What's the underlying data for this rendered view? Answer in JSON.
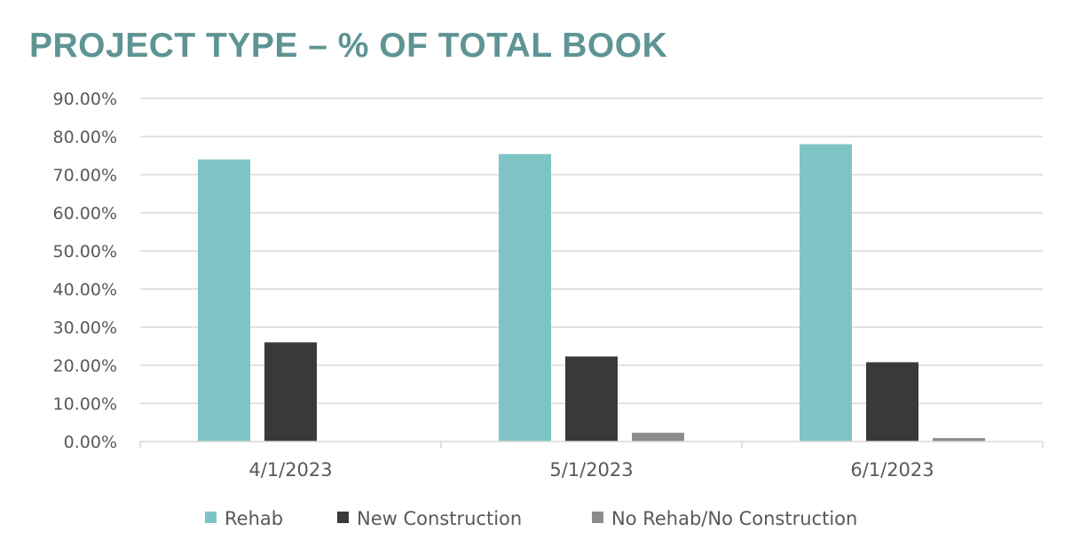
{
  "chart_data": {
    "type": "bar",
    "title": "PROJECT TYPE – % OF TOTAL BOOK",
    "xlabel": "",
    "ylabel": "",
    "categories": [
      "4/1/2023",
      "5/1/2023",
      "6/1/2023"
    ],
    "ylim": [
      0,
      90
    ],
    "yticks": [
      "0.00%",
      "10.00%",
      "20.00%",
      "30.00%",
      "40.00%",
      "50.00%",
      "60.00%",
      "70.00%",
      "80.00%",
      "90.00%"
    ],
    "grid": true,
    "legend_position": "bottom",
    "series": [
      {
        "name": "Rehab",
        "color": "#7fc4c4",
        "values": [
          74.0,
          75.4,
          78.0
        ]
      },
      {
        "name": "New Construction",
        "color": "#3b3838",
        "values": [
          26.0,
          22.3,
          20.8
        ]
      },
      {
        "name": "No Rehab/No Construction",
        "color": "#8c8c8c",
        "values": [
          0.0,
          2.3,
          0.9
        ]
      }
    ]
  }
}
